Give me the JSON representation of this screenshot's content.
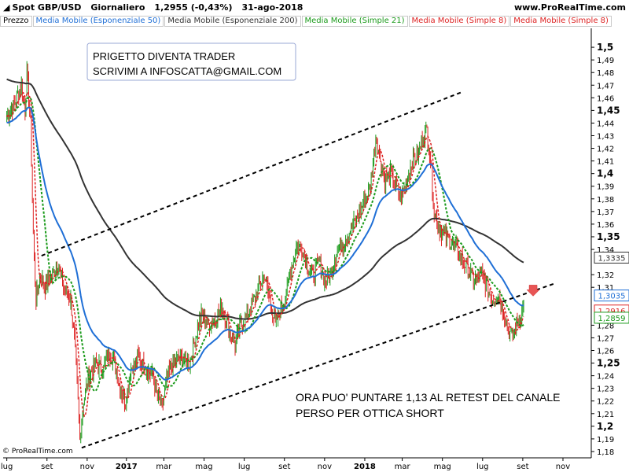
{
  "header": {
    "symbol": "Spot GBP/USD",
    "period": "Giornaliero",
    "quote": "1,2955 (-0,43%)",
    "date": "31-ago-2018",
    "site": "www.ProRealTime.com"
  },
  "legend": [
    {
      "label": "Prezzo",
      "color": "#000000"
    },
    {
      "label": "Media Mobile (Esponenziale 50)",
      "color": "#1f6fd6"
    },
    {
      "label": "Media Mobile (Esponenziale 200)",
      "color": "#333333"
    },
    {
      "label": "Media Mobile (Simple 21)",
      "color": "#1a9a1a"
    },
    {
      "label": "Media Mobile (Simple 8)",
      "color": "#dd2222"
    },
    {
      "label": "Media Mobile (Simple 8)",
      "color": "#dd2222"
    }
  ],
  "footer": "© ProRealTime.com",
  "chart_data": {
    "type": "line",
    "ylim": [
      1.175,
      1.515
    ],
    "y_ticks": [
      {
        "v": 1.5,
        "label": "1,5",
        "bold": true
      },
      {
        "v": 1.49,
        "label": "1,49"
      },
      {
        "v": 1.48,
        "label": "1,48"
      },
      {
        "v": 1.47,
        "label": "1,47"
      },
      {
        "v": 1.46,
        "label": "1,46"
      },
      {
        "v": 1.45,
        "label": "1,45",
        "bold": true
      },
      {
        "v": 1.44,
        "label": "1,44"
      },
      {
        "v": 1.43,
        "label": "1,43"
      },
      {
        "v": 1.42,
        "label": "1,42"
      },
      {
        "v": 1.41,
        "label": "1,41"
      },
      {
        "v": 1.4,
        "label": "1,4",
        "bold": true
      },
      {
        "v": 1.39,
        "label": "1,39"
      },
      {
        "v": 1.38,
        "label": "1,38"
      },
      {
        "v": 1.37,
        "label": "1,37"
      },
      {
        "v": 1.36,
        "label": "1,36"
      },
      {
        "v": 1.35,
        "label": "1,35",
        "bold": true
      },
      {
        "v": 1.34,
        "label": "1,34"
      },
      {
        "v": 1.32,
        "label": "1,32"
      },
      {
        "v": 1.31,
        "label": "1,31"
      },
      {
        "v": 1.28,
        "label": "1,28"
      },
      {
        "v": 1.27,
        "label": "1,27"
      },
      {
        "v": 1.26,
        "label": "1,26"
      },
      {
        "v": 1.25,
        "label": "1,25",
        "bold": true
      },
      {
        "v": 1.24,
        "label": "1,24"
      },
      {
        "v": 1.23,
        "label": "1,23"
      },
      {
        "v": 1.22,
        "label": "1,22"
      },
      {
        "v": 1.21,
        "label": "1,21"
      },
      {
        "v": 1.2,
        "label": "1,2",
        "bold": true
      },
      {
        "v": 1.19,
        "label": "1,19"
      },
      {
        "v": 1.18,
        "label": "1,18"
      }
    ],
    "price_tags": [
      {
        "v": 1.3335,
        "label": "1,3335",
        "color": "#333333",
        "fill": "#ffffff"
      },
      {
        "v": 1.3035,
        "label": "1,3035",
        "color": "#1f6fd6",
        "fill": "#ffffff"
      },
      {
        "v": 1.2916,
        "label": "1,2916",
        "color": "#dd2222",
        "fill": "#ffffff"
      },
      {
        "v": 1.2859,
        "label": "1,2859",
        "color": "#1a9a1a",
        "fill": "#ffffff"
      }
    ],
    "x_ticks": [
      {
        "t": 0,
        "label": "lug"
      },
      {
        "t": 44,
        "label": "set"
      },
      {
        "t": 88,
        "label": "nov"
      },
      {
        "t": 131,
        "label": "2017",
        "bold": true
      },
      {
        "t": 172,
        "label": "mar"
      },
      {
        "t": 216,
        "label": "mag"
      },
      {
        "t": 260,
        "label": "lug"
      },
      {
        "t": 304,
        "label": "set"
      },
      {
        "t": 348,
        "label": "nov"
      },
      {
        "t": 392,
        "label": "2018",
        "bold": true
      },
      {
        "t": 433,
        "label": "mar"
      },
      {
        "t": 477,
        "label": "mag"
      },
      {
        "t": 521,
        "label": "lug"
      },
      {
        "t": 565,
        "label": "set"
      },
      {
        "t": 609,
        "label": "nov"
      }
    ],
    "xlim": [
      -4,
      640
    ],
    "price_path": [
      [
        -4,
        1.44
      ],
      [
        8,
        1.455
      ],
      [
        16,
        1.47
      ],
      [
        20,
        1.45
      ],
      [
        22,
        1.48
      ],
      [
        24,
        1.46
      ],
      [
        26,
        1.44
      ],
      [
        28,
        1.38
      ],
      [
        30,
        1.33
      ],
      [
        32,
        1.3
      ],
      [
        36,
        1.32
      ],
      [
        42,
        1.31
      ],
      [
        50,
        1.32
      ],
      [
        56,
        1.33
      ],
      [
        62,
        1.31
      ],
      [
        70,
        1.3
      ],
      [
        74,
        1.27
      ],
      [
        78,
        1.22
      ],
      [
        80,
        1.19
      ],
      [
        84,
        1.22
      ],
      [
        90,
        1.24
      ],
      [
        98,
        1.25
      ],
      [
        106,
        1.245
      ],
      [
        112,
        1.26
      ],
      [
        118,
        1.25
      ],
      [
        124,
        1.23
      ],
      [
        130,
        1.22
      ],
      [
        136,
        1.245
      ],
      [
        144,
        1.255
      ],
      [
        152,
        1.245
      ],
      [
        160,
        1.24
      ],
      [
        166,
        1.22
      ],
      [
        170,
        1.215
      ],
      [
        176,
        1.24
      ],
      [
        182,
        1.25
      ],
      [
        190,
        1.255
      ],
      [
        200,
        1.25
      ],
      [
        208,
        1.275
      ],
      [
        214,
        1.29
      ],
      [
        220,
        1.28
      ],
      [
        228,
        1.285
      ],
      [
        236,
        1.295
      ],
      [
        244,
        1.275
      ],
      [
        250,
        1.265
      ],
      [
        256,
        1.28
      ],
      [
        262,
        1.285
      ],
      [
        268,
        1.295
      ],
      [
        276,
        1.31
      ],
      [
        282,
        1.32
      ],
      [
        288,
        1.3
      ],
      [
        294,
        1.28
      ],
      [
        298,
        1.29
      ],
      [
        304,
        1.3
      ],
      [
        310,
        1.32
      ],
      [
        318,
        1.345
      ],
      [
        324,
        1.34
      ],
      [
        330,
        1.325
      ],
      [
        336,
        1.32
      ],
      [
        342,
        1.33
      ],
      [
        348,
        1.315
      ],
      [
        354,
        1.32
      ],
      [
        362,
        1.34
      ],
      [
        368,
        1.345
      ],
      [
        376,
        1.355
      ],
      [
        384,
        1.365
      ],
      [
        392,
        1.38
      ],
      [
        398,
        1.39
      ],
      [
        404,
        1.43
      ],
      [
        408,
        1.415
      ],
      [
        414,
        1.395
      ],
      [
        420,
        1.4
      ],
      [
        426,
        1.39
      ],
      [
        432,
        1.38
      ],
      [
        438,
        1.395
      ],
      [
        444,
        1.41
      ],
      [
        450,
        1.415
      ],
      [
        456,
        1.43
      ],
      [
        460,
        1.435
      ],
      [
        464,
        1.41
      ],
      [
        468,
        1.37
      ],
      [
        474,
        1.355
      ],
      [
        480,
        1.35
      ],
      [
        488,
        1.345
      ],
      [
        496,
        1.335
      ],
      [
        504,
        1.325
      ],
      [
        512,
        1.315
      ],
      [
        520,
        1.32
      ],
      [
        526,
        1.31
      ],
      [
        532,
        1.3
      ],
      [
        538,
        1.305
      ],
      [
        544,
        1.29
      ],
      [
        550,
        1.275
      ],
      [
        554,
        1.27
      ],
      [
        558,
        1.28
      ],
      [
        564,
        1.29
      ],
      [
        566,
        1.2955
      ]
    ],
    "trendlines": [
      {
        "name": "upper-channel",
        "from": [
          38,
          1.335
        ],
        "to": [
          500,
          1.465
        ]
      },
      {
        "name": "lower-channel",
        "from": [
          82,
          1.183
        ],
        "to": [
          600,
          1.313
        ]
      }
    ],
    "annotations": [
      {
        "lines": [
          "PRIGETTO DIVENTA TRADER",
          "SCRIVIMI A INFOSCATTA@GMAIL.COM"
        ],
        "boxed": true
      },
      {
        "lines": [
          "ORA PUO' PUNTARE 1,13 AL RETEST DEL CANALE",
          "PERSO PER OTTICA SHORT"
        ],
        "boxed": false
      }
    ]
  }
}
